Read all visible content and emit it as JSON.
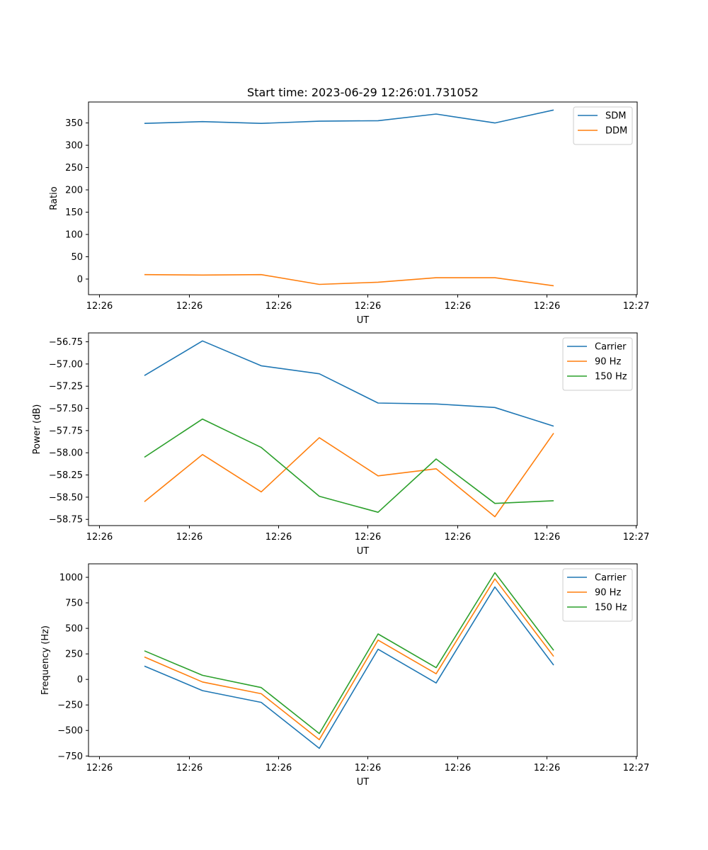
{
  "figure": {
    "title": "Start time: 2023-06-29 12:26:01.731052"
  },
  "chart_data": [
    {
      "type": "line",
      "xlabel": "UT",
      "ylabel": "Ratio",
      "x_tick_labels": [
        "12:26",
        "12:26",
        "12:26",
        "12:26",
        "12:26",
        "12:26",
        "12:27"
      ],
      "y_ticks": [
        0,
        50,
        100,
        150,
        200,
        250,
        300,
        350
      ],
      "ylim": [
        -35,
        397
      ],
      "legend": "top-right",
      "series": [
        {
          "name": "SDM",
          "color": "#1f77b4",
          "values": [
            349,
            353,
            349,
            354,
            355,
            370,
            350,
            379
          ]
        },
        {
          "name": "DDM",
          "color": "#ff7f0e",
          "values": [
            10,
            9,
            10,
            -12,
            -7,
            3,
            3,
            -15
          ]
        }
      ]
    },
    {
      "type": "line",
      "xlabel": "UT",
      "ylabel": "Power (dB)",
      "x_tick_labels": [
        "12:26",
        "12:26",
        "12:26",
        "12:26",
        "12:26",
        "12:26",
        "12:27"
      ],
      "y_ticks": [
        -58.75,
        -58.5,
        -58.25,
        -58.0,
        -57.75,
        -57.5,
        -57.25,
        -57.0,
        -56.75
      ],
      "y_tick_labels": [
        "−58.75",
        "−58.50",
        "−58.25",
        "−58.00",
        "−57.75",
        "−57.50",
        "−57.25",
        "−57.00",
        "−56.75"
      ],
      "ylim": [
        -58.82,
        -56.65
      ],
      "legend": "top-right",
      "series": [
        {
          "name": "Carrier",
          "color": "#1f77b4",
          "values": [
            -57.13,
            -56.74,
            -57.02,
            -57.11,
            -57.44,
            -57.45,
            -57.49,
            -57.7
          ]
        },
        {
          "name": "90 Hz",
          "color": "#ff7f0e",
          "values": [
            -58.55,
            -58.02,
            -58.44,
            -57.83,
            -58.26,
            -58.18,
            -58.72,
            -57.78
          ]
        },
        {
          "name": "150 Hz",
          "color": "#2ca02c",
          "values": [
            -58.05,
            -57.62,
            -57.94,
            -58.49,
            -58.67,
            -58.07,
            -58.57,
            -58.54
          ]
        }
      ]
    },
    {
      "type": "line",
      "xlabel": "UT",
      "ylabel": "Frequency (Hz)",
      "x_tick_labels": [
        "12:26",
        "12:26",
        "12:26",
        "12:26",
        "12:26",
        "12:26",
        "12:27"
      ],
      "y_ticks": [
        -750,
        -500,
        -250,
        0,
        250,
        500,
        750,
        1000
      ],
      "y_tick_labels": [
        "−750",
        "−500",
        "−250",
        "0",
        "250",
        "500",
        "750",
        "1000"
      ],
      "ylim": [
        -755,
        1132
      ],
      "legend": "top-right",
      "series": [
        {
          "name": "Carrier",
          "color": "#1f77b4",
          "values": [
            130,
            -110,
            -225,
            -675,
            295,
            -35,
            905,
            140
          ]
        },
        {
          "name": "90 Hz",
          "color": "#ff7f0e",
          "values": [
            220,
            -25,
            -140,
            -590,
            385,
            55,
            985,
            225
          ]
        },
        {
          "name": "150 Hz",
          "color": "#2ca02c",
          "values": [
            280,
            40,
            -80,
            -530,
            445,
            115,
            1045,
            285
          ]
        }
      ]
    }
  ]
}
